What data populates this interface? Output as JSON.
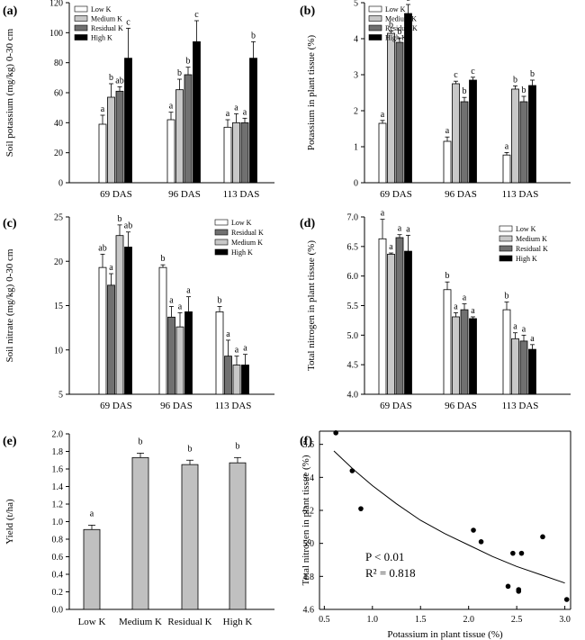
{
  "chart_data": [
    {
      "panel": "(a)",
      "type": "bar",
      "ylabel": "Soil potassium (mg/kg) 0-30 cm",
      "ylim": [
        0,
        120
      ],
      "yticks": [
        0,
        20,
        40,
        60,
        80,
        100,
        120
      ],
      "categories": [
        "69 DAS",
        "96 DAS",
        "113 DAS"
      ],
      "legend": "top-left",
      "series": [
        {
          "name": "Low K",
          "values": [
            39,
            42,
            37
          ],
          "errors": [
            6,
            5,
            5
          ],
          "letters": [
            "a",
            "a",
            "a"
          ]
        },
        {
          "name": "Medium K",
          "values": [
            57,
            62,
            40
          ],
          "errors": [
            9,
            7,
            6
          ],
          "letters": [
            "b",
            "b",
            "a"
          ]
        },
        {
          "name": "Residual K",
          "values": [
            61,
            72,
            40
          ],
          "errors": [
            3,
            5,
            3
          ],
          "letters": [
            "ab",
            "b",
            "a"
          ]
        },
        {
          "name": "High K",
          "values": [
            83,
            94,
            83
          ],
          "errors": [
            20,
            14,
            11
          ],
          "letters": [
            "c",
            "c",
            "b"
          ]
        }
      ]
    },
    {
      "panel": "(b)",
      "type": "bar",
      "ylabel": "Potassium in plant tissue (%)",
      "ylim": [
        0,
        5
      ],
      "yticks": [
        0,
        1,
        2,
        3,
        4,
        5
      ],
      "categories": [
        "69 DAS",
        "96 DAS",
        "113 DAS"
      ],
      "legend": "top-left",
      "series": [
        {
          "name": "Low K",
          "values": [
            1.65,
            1.15,
            0.77
          ],
          "errors": [
            0.08,
            0.12,
            0.07
          ],
          "letters": [
            "a",
            "a",
            "a"
          ]
        },
        {
          "name": "Medium K",
          "values": [
            4.15,
            2.75,
            2.6
          ],
          "errors": [
            0.06,
            0.07,
            0.09
          ],
          "letters": [
            "b",
            "c",
            "b"
          ]
        },
        {
          "name": "Residual K",
          "values": [
            3.9,
            2.25,
            2.25
          ],
          "errors": [
            0.12,
            0.12,
            0.15
          ],
          "letters": [
            "b",
            "b",
            "b"
          ]
        },
        {
          "name": "High K",
          "values": [
            4.7,
            2.85,
            2.7
          ],
          "errors": [
            0.25,
            0.08,
            0.15
          ],
          "letters": [
            "c",
            "c",
            "b"
          ]
        }
      ]
    },
    {
      "panel": "(c)",
      "type": "bar",
      "ylabel": "Soil nitrate (mg/kg) 0-30 cm",
      "ylim": [
        5,
        25
      ],
      "yticks": [
        5,
        10,
        15,
        20,
        25
      ],
      "categories": [
        "69 DAS",
        "96 DAS",
        "113 DAS"
      ],
      "legend": "top-right",
      "series": [
        {
          "name": "Low K",
          "values": [
            19.3,
            19.3,
            14.3
          ],
          "errors": [
            1.5,
            0.3,
            0.6
          ],
          "letters": [
            "ab",
            "b",
            "b"
          ]
        },
        {
          "name": "Residual K",
          "values": [
            17.3,
            13.7,
            9.3
          ],
          "errors": [
            1.3,
            1.2,
            1.8
          ],
          "letters": [
            "a",
            "a",
            "a"
          ]
        },
        {
          "name": "Medium K",
          "values": [
            22.9,
            12.6,
            8.3
          ],
          "errors": [
            1.2,
            1.6,
            1.0
          ],
          "letters": [
            "b",
            "a",
            "a"
          ]
        },
        {
          "name": "High K",
          "values": [
            21.6,
            14.3,
            8.3
          ],
          "errors": [
            1.7,
            1.7,
            1.2
          ],
          "letters": [
            "ab",
            "a",
            "a"
          ]
        }
      ]
    },
    {
      "panel": "(d)",
      "type": "bar",
      "ylabel": "Total nitrogen in plant tissue (%)",
      "ylim": [
        4.0,
        7.0
      ],
      "yticks": [
        "4.0",
        "4.5",
        "5.0",
        "5.5",
        "6.0",
        "6.5",
        "7.0"
      ],
      "categories": [
        "69 DAS",
        "96 DAS",
        "113 DAS"
      ],
      "legend": "top-right",
      "series": [
        {
          "name": "Low K",
          "values": [
            6.63,
            5.77,
            5.43
          ],
          "errors": [
            0.33,
            0.13,
            0.13
          ],
          "letters": [
            "a",
            "b",
            "b"
          ]
        },
        {
          "name": "Medium K",
          "values": [
            6.37,
            5.31,
            4.94
          ],
          "errors": [
            0.02,
            0.07,
            0.1
          ],
          "letters": [
            "a",
            "a",
            "a"
          ]
        },
        {
          "name": "Residual K",
          "values": [
            6.65,
            5.43,
            4.9
          ],
          "errors": [
            0.05,
            0.1,
            0.1
          ],
          "letters": [
            "a",
            "a",
            "a"
          ]
        },
        {
          "name": "High K",
          "values": [
            6.42,
            5.28,
            4.76
          ],
          "errors": [
            0.27,
            0.03,
            0.08
          ],
          "letters": [
            "a",
            "a",
            "a"
          ]
        }
      ]
    },
    {
      "panel": "(e)",
      "type": "bar",
      "ylabel": "Yield (t/ha)",
      "ylim": [
        0.0,
        2.0
      ],
      "yticks": [
        "0.0",
        "0.2",
        "0.4",
        "0.6",
        "0.8",
        "1.0",
        "1.2",
        "1.4",
        "1.6",
        "1.8",
        "2.0"
      ],
      "categories": [
        "Low K",
        "Medium K",
        "Residual K",
        "High K"
      ],
      "values": [
        0.91,
        1.73,
        1.65,
        1.67
      ],
      "errors": [
        0.05,
        0.05,
        0.05,
        0.06
      ],
      "letters": [
        "a",
        "b",
        "b",
        "b"
      ],
      "color": "#c0c0c0"
    },
    {
      "panel": "(f)",
      "type": "scatter",
      "xlabel": "Potassium in plant tissue (%)",
      "ylabel": "Total nitrogen in plant tissue (%)",
      "xlim": [
        0.0,
        3.0
      ],
      "ylim": [
        4.6,
        5.6
      ],
      "xticks": [
        "0.5",
        "1.0",
        "1.5",
        "2.0",
        "2.5",
        "3.0"
      ],
      "yticks": [
        "4.6",
        "4.8",
        "5.0",
        "5.2",
        "5.4",
        "5.6"
      ],
      "points": [
        {
          "x": 0.62,
          "y": 5.67
        },
        {
          "x": 0.79,
          "y": 5.44
        },
        {
          "x": 0.88,
          "y": 5.21
        },
        {
          "x": 2.05,
          "y": 5.08
        },
        {
          "x": 2.13,
          "y": 5.01
        },
        {
          "x": 2.41,
          "y": 4.74
        },
        {
          "x": 2.46,
          "y": 4.94
        },
        {
          "x": 2.52,
          "y": 4.72
        },
        {
          "x": 2.52,
          "y": 4.71
        },
        {
          "x": 2.55,
          "y": 4.94
        },
        {
          "x": 2.77,
          "y": 5.04
        },
        {
          "x": 3.02,
          "y": 4.66
        }
      ],
      "fit_curve": [
        {
          "x": 0.6,
          "y": 5.56
        },
        {
          "x": 0.8,
          "y": 5.45
        },
        {
          "x": 1.0,
          "y": 5.35
        },
        {
          "x": 1.25,
          "y": 5.24
        },
        {
          "x": 1.5,
          "y": 5.14
        },
        {
          "x": 1.75,
          "y": 5.06
        },
        {
          "x": 2.0,
          "y": 4.99
        },
        {
          "x": 2.25,
          "y": 4.92
        },
        {
          "x": 2.5,
          "y": 4.86
        },
        {
          "x": 2.75,
          "y": 4.81
        },
        {
          "x": 3.0,
          "y": 4.76
        }
      ],
      "annotations": [
        "P < 0.01",
        "R² = 0.818"
      ]
    }
  ],
  "colors": {
    "Low K": "#ffffff",
    "Medium K": "#c8c8c8",
    "Residual K": "#707070",
    "High K": "#000000",
    "yield_bar": "#c0c0c0"
  }
}
